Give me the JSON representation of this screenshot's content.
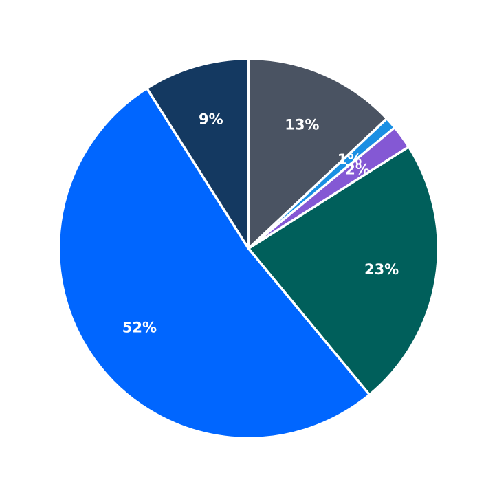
{
  "chart_data": {
    "type": "pie",
    "title": "",
    "start": "12 o'clock",
    "direction": "clockwise",
    "slices": [
      {
        "value": 13,
        "label": "13%",
        "color": "#4a5362"
      },
      {
        "value": 1,
        "label": "1%",
        "color": "#1a8fe3"
      },
      {
        "value": 2,
        "label": "2%",
        "color": "#8458d4"
      },
      {
        "value": 23,
        "label": "23%",
        "color": "#005f5b"
      },
      {
        "value": 52,
        "label": "52%",
        "color": "#0066ff"
      },
      {
        "value": 9,
        "label": "9%",
        "color": "#143961"
      }
    ]
  }
}
